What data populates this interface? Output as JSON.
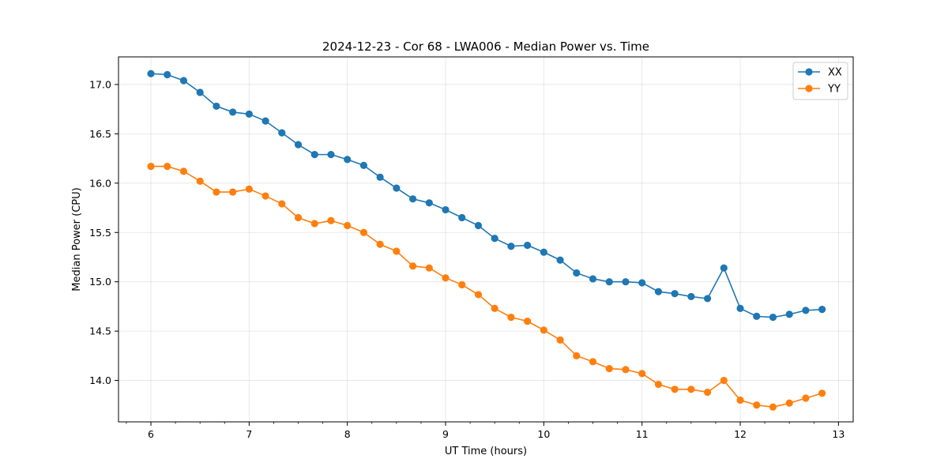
{
  "chart_data": {
    "type": "line",
    "title": "2024-12-23 - Cor 68 - LWA006 - Median Power vs. Time",
    "xlabel": "UT Time (hours)",
    "ylabel": "Median Power (CPU)",
    "xlim": [
      5.67,
      13.15
    ],
    "ylim": [
      13.58,
      17.28
    ],
    "xticks": [
      6,
      7,
      8,
      9,
      10,
      11,
      12,
      13
    ],
    "xtick_labels": [
      "6",
      "7",
      "8",
      "9",
      "10",
      "11",
      "12",
      "13"
    ],
    "yticks": [
      14.0,
      14.5,
      15.0,
      15.5,
      16.0,
      16.5,
      17.0
    ],
    "ytick_labels": [
      "14.0",
      "14.5",
      "15.0",
      "15.5",
      "16.0",
      "16.5",
      "17.0"
    ],
    "grid": true,
    "legend_position": "top-right",
    "x": [
      6.0,
      6.1667,
      6.3333,
      6.5,
      6.6667,
      6.8333,
      7.0,
      7.1667,
      7.3333,
      7.5,
      7.6667,
      7.8333,
      8.0,
      8.1667,
      8.3333,
      8.5,
      8.6667,
      8.8333,
      9.0,
      9.1667,
      9.3333,
      9.5,
      9.6667,
      9.8333,
      10.0,
      10.1667,
      10.3333,
      10.5,
      10.6667,
      10.8333,
      11.0,
      11.1667,
      11.3333,
      11.5,
      11.6667,
      11.8333,
      12.0,
      12.1667,
      12.3333,
      12.5,
      12.6667,
      12.8333
    ],
    "series": [
      {
        "name": "XX",
        "color": "#1f77b4",
        "values": [
          17.11,
          17.1,
          17.04,
          16.92,
          16.78,
          16.72,
          16.7,
          16.63,
          16.51,
          16.39,
          16.29,
          16.29,
          16.24,
          16.18,
          16.06,
          15.95,
          15.84,
          15.8,
          15.73,
          15.65,
          15.57,
          15.44,
          15.36,
          15.37,
          15.3,
          15.22,
          15.09,
          15.03,
          15.0,
          15.0,
          14.99,
          14.9,
          14.88,
          14.85,
          14.83,
          15.14,
          14.73,
          14.65,
          14.64,
          14.67,
          14.71,
          14.72
        ]
      },
      {
        "name": "YY",
        "color": "#ff7f0e",
        "values": [
          16.17,
          16.17,
          16.12,
          16.02,
          15.91,
          15.91,
          15.94,
          15.87,
          15.79,
          15.65,
          15.59,
          15.62,
          15.57,
          15.5,
          15.38,
          15.31,
          15.16,
          15.14,
          15.04,
          14.97,
          14.87,
          14.73,
          14.64,
          14.6,
          14.51,
          14.41,
          14.25,
          14.19,
          14.12,
          14.11,
          14.07,
          13.96,
          13.91,
          13.91,
          13.88,
          14.0,
          13.8,
          13.75,
          13.73,
          13.77,
          13.82,
          13.87
        ]
      }
    ]
  }
}
